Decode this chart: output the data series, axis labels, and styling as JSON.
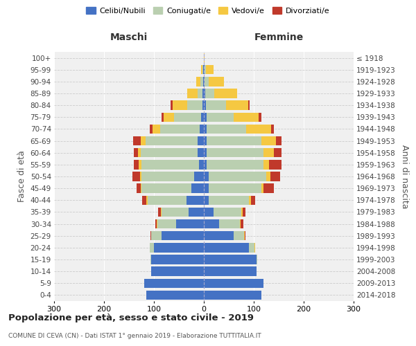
{
  "age_groups": [
    "0-4",
    "5-9",
    "10-14",
    "15-19",
    "20-24",
    "25-29",
    "30-34",
    "35-39",
    "40-44",
    "45-49",
    "50-54",
    "55-59",
    "60-64",
    "65-69",
    "70-74",
    "75-79",
    "80-84",
    "85-89",
    "90-94",
    "95-99",
    "100+"
  ],
  "birth_years": [
    "2014-2018",
    "2009-2013",
    "2004-2008",
    "1999-2003",
    "1994-1998",
    "1989-1993",
    "1984-1988",
    "1979-1983",
    "1974-1978",
    "1969-1973",
    "1964-1968",
    "1959-1963",
    "1954-1958",
    "1949-1953",
    "1944-1948",
    "1939-1943",
    "1934-1938",
    "1929-1933",
    "1924-1928",
    "1919-1923",
    "≤ 1918"
  ],
  "males": {
    "celibi": [
      115,
      120,
      105,
      105,
      100,
      85,
      55,
      30,
      35,
      25,
      20,
      10,
      12,
      12,
      8,
      5,
      3,
      3,
      2,
      1,
      0
    ],
    "coniugati": [
      0,
      0,
      0,
      2,
      8,
      20,
      38,
      55,
      78,
      100,
      105,
      115,
      115,
      105,
      80,
      55,
      30,
      10,
      5,
      2,
      0
    ],
    "vedovi": [
      0,
      0,
      0,
      0,
      1,
      1,
      1,
      1,
      2,
      2,
      3,
      5,
      5,
      10,
      15,
      20,
      30,
      20,
      8,
      3,
      0
    ],
    "divorziati": [
      0,
      0,
      0,
      0,
      0,
      1,
      3,
      5,
      8,
      8,
      15,
      10,
      8,
      15,
      5,
      5,
      3,
      0,
      0,
      0,
      0
    ]
  },
  "females": {
    "nubili": [
      115,
      120,
      105,
      105,
      90,
      60,
      30,
      20,
      10,
      10,
      10,
      5,
      5,
      5,
      5,
      5,
      4,
      3,
      2,
      1,
      0
    ],
    "coniugate": [
      0,
      0,
      0,
      2,
      12,
      20,
      42,
      55,
      80,
      105,
      115,
      115,
      115,
      110,
      80,
      55,
      40,
      18,
      8,
      3,
      0
    ],
    "vedove": [
      0,
      0,
      0,
      0,
      1,
      2,
      2,
      3,
      5,
      5,
      8,
      10,
      20,
      30,
      50,
      50,
      45,
      45,
      30,
      15,
      2
    ],
    "divorziate": [
      0,
      0,
      0,
      0,
      0,
      2,
      5,
      5,
      8,
      20,
      20,
      25,
      15,
      10,
      5,
      5,
      3,
      0,
      0,
      0,
      0
    ]
  },
  "colors": {
    "celibi_nubili": "#4472C4",
    "coniugati": "#BACFB0",
    "vedovi": "#F5C842",
    "divorziati": "#C0392B"
  },
  "title": "Popolazione per età, sesso e stato civile - 2019",
  "subtitle": "COMUNE DI CEVA (CN) - Dati ISTAT 1° gennaio 2019 - Elaborazione TUTTITALIA.IT",
  "xlabel_left": "Maschi",
  "xlabel_right": "Femmine",
  "ylabel_left": "Fasce di età",
  "ylabel_right": "Anni di nascita",
  "xlim": 300,
  "bg_color": "#f0f0f0",
  "legend_labels": [
    "Celibi/Nubili",
    "Coniugati/e",
    "Vedovi/e",
    "Divorziati/e"
  ]
}
